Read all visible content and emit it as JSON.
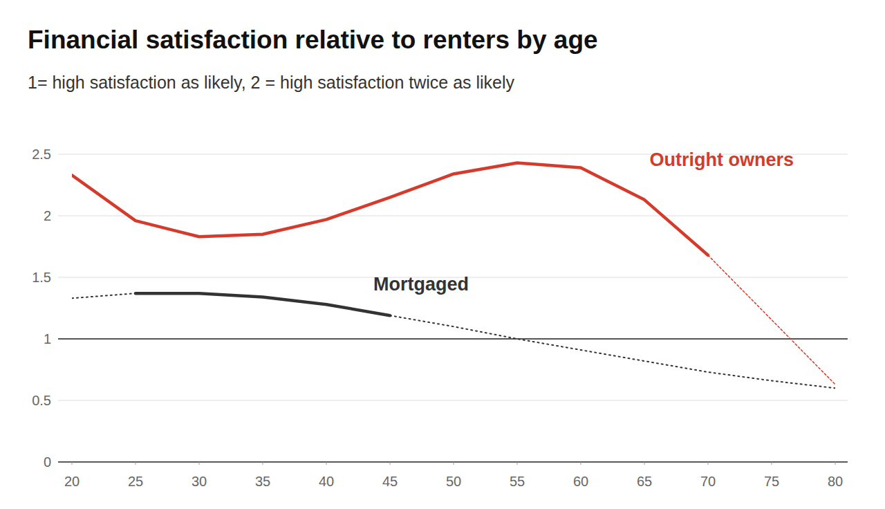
{
  "chart_data": {
    "type": "line",
    "title": "Financial satisfaction relative to renters by age",
    "subtitle": "1= high satisfaction as likely, 2 = high satisfaction twice as likely",
    "xlim": [
      20,
      80
    ],
    "xticks": [
      20,
      25,
      30,
      35,
      40,
      45,
      50,
      55,
      60,
      65,
      70,
      75,
      80
    ],
    "ylim": [
      0,
      2.5
    ],
    "yticks": [
      0,
      0.5,
      1,
      1.5,
      2,
      2.5
    ],
    "reference_value": 1,
    "grid": true,
    "series": [
      {
        "name": "Outright owners",
        "color": "#d63a2a",
        "line_style": "solid",
        "x": [
          20,
          25,
          30,
          35,
          40,
          45,
          50,
          55,
          60,
          65,
          70
        ],
        "values": [
          2.33,
          1.96,
          1.83,
          1.85,
          1.97,
          2.15,
          2.34,
          2.43,
          2.39,
          2.13,
          1.68
        ]
      },
      {
        "name": "Outright owners",
        "color": "#d63a2a",
        "line_style": "dashed",
        "x": [
          70,
          80
        ],
        "values": [
          1.68,
          0.63
        ]
      },
      {
        "name": "Mortgaged",
        "color": "#333333",
        "line_style": "dotted",
        "x": [
          20,
          25
        ],
        "values": [
          1.33,
          1.37
        ]
      },
      {
        "name": "Mortgaged",
        "color": "#333333",
        "line_style": "solid",
        "x": [
          25,
          30,
          35,
          40,
          45
        ],
        "values": [
          1.37,
          1.37,
          1.34,
          1.28,
          1.19
        ]
      },
      {
        "name": "Mortgaged",
        "color": "#333333",
        "line_style": "dotted",
        "x": [
          45,
          50,
          55,
          60,
          65,
          70,
          75,
          80
        ],
        "values": [
          1.19,
          1.1,
          1.0,
          0.91,
          0.82,
          0.73,
          0.66,
          0.6
        ]
      }
    ]
  }
}
